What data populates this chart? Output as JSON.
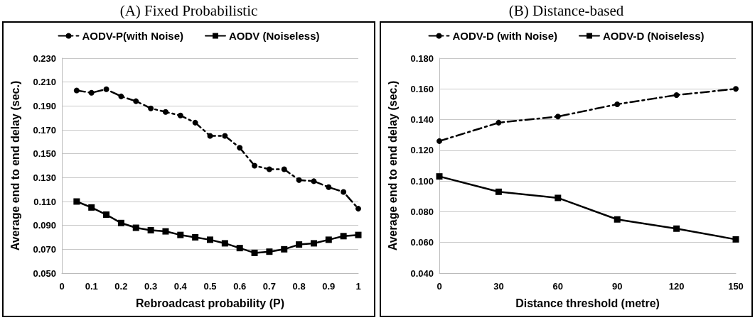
{
  "chart_data": [
    {
      "type": "line",
      "title": "(A) Fixed Probabilistic",
      "xlabel": "Rebroadcast probability (P)",
      "ylabel": "Average end to end delay (sec.)",
      "x": [
        0.05,
        0.1,
        0.15,
        0.2,
        0.25,
        0.3,
        0.35,
        0.4,
        0.45,
        0.5,
        0.55,
        0.6,
        0.65,
        0.7,
        0.75,
        0.8,
        0.85,
        0.9,
        0.95,
        1
      ],
      "series": [
        {
          "name": "AODV-P(with Noise)",
          "color": "#000000",
          "marker": "circle",
          "line_style": "dashed",
          "values": [
            0.203,
            0.201,
            0.204,
            0.198,
            0.194,
            0.188,
            0.185,
            0.182,
            0.176,
            0.165,
            0.165,
            0.155,
            0.14,
            0.137,
            0.137,
            0.128,
            0.127,
            0.122,
            0.118,
            0.104
          ]
        },
        {
          "name": "AODV (Noiseless)",
          "color": "#000000",
          "marker": "square",
          "line_style": "solid",
          "values": [
            0.11,
            0.105,
            0.099,
            0.092,
            0.088,
            0.086,
            0.085,
            0.082,
            0.08,
            0.078,
            0.075,
            0.071,
            0.067,
            0.068,
            0.07,
            0.074,
            0.075,
            0.078,
            0.081,
            0.082
          ]
        }
      ],
      "xlim": [
        0,
        1
      ],
      "xticks": [
        0,
        0.1,
        0.2,
        0.3,
        0.4,
        0.5,
        0.6,
        0.7,
        0.8,
        0.9,
        1
      ],
      "ylim": [
        0.05,
        0.23
      ],
      "yticks": [
        {
          "value": 0.05,
          "label": "0.050"
        },
        {
          "value": 0.07,
          "label": "0.070"
        },
        {
          "value": 0.09,
          "label": "0.090"
        },
        {
          "value": 0.11,
          "label": "0.110"
        },
        {
          "value": 0.13,
          "label": "0.130"
        },
        {
          "value": 0.15,
          "label": "0.150"
        },
        {
          "value": 0.17,
          "label": "0.170"
        },
        {
          "value": 0.19,
          "label": "0.190"
        },
        {
          "value": 0.21,
          "label": "0.210"
        },
        {
          "value": 0.23,
          "label": "0.230"
        }
      ],
      "grid": "y",
      "legend": "top"
    },
    {
      "type": "line",
      "title": "(B) Distance-based",
      "xlabel": "Distance threshold (metre)",
      "ylabel": "Average end to end delay (sec.)",
      "x": [
        0,
        30,
        60,
        90,
        120,
        150
      ],
      "series": [
        {
          "name": "AODV-D (with Noise)",
          "color": "#000000",
          "marker": "circle",
          "line_style": "dashed",
          "values": [
            0.126,
            0.138,
            0.142,
            0.15,
            0.156,
            0.16
          ]
        },
        {
          "name": "AODV-D (Noiseless)",
          "color": "#000000",
          "marker": "square",
          "line_style": "solid",
          "values": [
            0.103,
            0.093,
            0.089,
            0.075,
            0.069,
            0.062
          ]
        }
      ],
      "xlim": [
        0,
        150
      ],
      "xticks": [
        0,
        30,
        60,
        90,
        120,
        150
      ],
      "ylim": [
        0.04,
        0.18
      ],
      "yticks": [
        {
          "value": 0.04,
          "label": "0.040"
        },
        {
          "value": 0.06,
          "label": "0.060"
        },
        {
          "value": 0.08,
          "label": "0.080"
        },
        {
          "value": 0.1,
          "label": "0.100"
        },
        {
          "value": 0.12,
          "label": "0.120"
        },
        {
          "value": 0.14,
          "label": "0.140"
        },
        {
          "value": 0.16,
          "label": "0.160"
        },
        {
          "value": 0.18,
          "label": "0.180"
        }
      ],
      "grid": "y",
      "legend": "top"
    }
  ]
}
